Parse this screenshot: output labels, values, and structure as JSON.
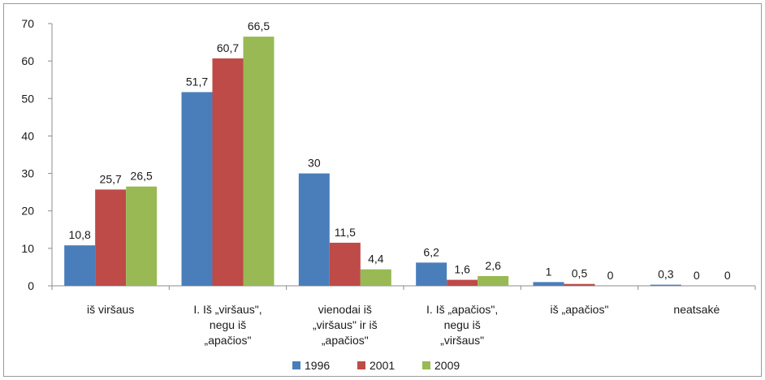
{
  "chart_data": {
    "type": "bar",
    "title": "",
    "xlabel": "",
    "ylabel": "",
    "ylim": [
      0,
      70
    ],
    "yticks": [
      "0",
      "10",
      "20",
      "30",
      "40",
      "50",
      "60",
      "70"
    ],
    "grid": false,
    "legend_position": "bottom",
    "categories": [
      [
        "iš viršaus"
      ],
      [
        "I. Iš „viršaus\",",
        "negu iš",
        "„apačios\""
      ],
      [
        "vienodai iš",
        "„viršaus\" ir iš",
        "„apačios\""
      ],
      [
        "I. Iš „apačios\",",
        "negu iš",
        "„viršaus\""
      ],
      [
        "iš „apačios\""
      ],
      [
        "neatsakė"
      ]
    ],
    "series": [
      {
        "name": "1996",
        "color": "#4a7ebb",
        "values": [
          10.8,
          51.7,
          30,
          6.2,
          1,
          0.3
        ],
        "labels": [
          "10,8",
          "51,7",
          "30",
          "6,2",
          "1",
          "0,3"
        ]
      },
      {
        "name": "2001",
        "color": "#be4b48",
        "values": [
          25.7,
          60.7,
          11.5,
          1.6,
          0.5,
          0
        ],
        "labels": [
          "25,7",
          "60,7",
          "11,5",
          "1,6",
          "0,5",
          "0"
        ]
      },
      {
        "name": "2009",
        "color": "#98b954",
        "values": [
          26.5,
          66.5,
          4.4,
          2.6,
          0,
          0
        ],
        "labels": [
          "26,5",
          "66,5",
          "4,4",
          "2,6",
          "0",
          "0"
        ]
      }
    ]
  }
}
